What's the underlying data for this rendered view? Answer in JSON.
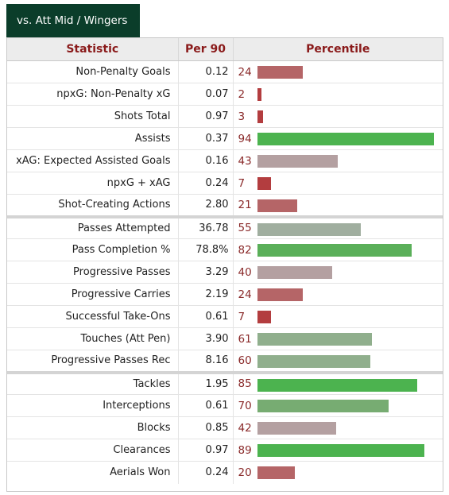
{
  "tab": {
    "label": "vs. Att Mid / Wingers"
  },
  "table": {
    "headers": {
      "statistic": "Statistic",
      "per90": "Per 90",
      "percentile": "Percentile"
    },
    "groups": [
      [
        {
          "stat": "Non-Penalty Goals",
          "per90": "0.12",
          "percentile": 24,
          "color": "#b56567"
        },
        {
          "stat": "npxG: Non-Penalty xG",
          "per90": "0.07",
          "percentile": 2,
          "color": "#b33d3f"
        },
        {
          "stat": "Shots Total",
          "per90": "0.97",
          "percentile": 3,
          "color": "#b33d3f"
        },
        {
          "stat": "Assists",
          "per90": "0.37",
          "percentile": 94,
          "color": "#4cb34f"
        },
        {
          "stat": "xAG: Expected Assisted Goals",
          "per90": "0.16",
          "percentile": 43,
          "color": "#b4a0a1"
        },
        {
          "stat": "npxG + xAG",
          "per90": "0.24",
          "percentile": 7,
          "color": "#b33d3f"
        },
        {
          "stat": "Shot-Creating Actions",
          "per90": "2.80",
          "percentile": 21,
          "color": "#b56567"
        }
      ],
      [
        {
          "stat": "Passes Attempted",
          "per90": "36.78",
          "percentile": 55,
          "color": "#a0ae9f"
        },
        {
          "stat": "Pass Completion %",
          "per90": "78.8%",
          "percentile": 82,
          "color": "#5aaf59"
        },
        {
          "stat": "Progressive Passes",
          "per90": "3.29",
          "percentile": 40,
          "color": "#b4a0a1"
        },
        {
          "stat": "Progressive Carries",
          "per90": "2.19",
          "percentile": 24,
          "color": "#b56567"
        },
        {
          "stat": "Successful Take-Ons",
          "per90": "0.61",
          "percentile": 7,
          "color": "#b33d3f"
        },
        {
          "stat": "Touches (Att Pen)",
          "per90": "3.90",
          "percentile": 61,
          "color": "#90af8d"
        },
        {
          "stat": "Progressive Passes Rec",
          "per90": "8.16",
          "percentile": 60,
          "color": "#90af8d"
        }
      ],
      [
        {
          "stat": "Tackles",
          "per90": "1.95",
          "percentile": 85,
          "color": "#4cb34f"
        },
        {
          "stat": "Interceptions",
          "per90": "0.61",
          "percentile": 70,
          "color": "#77ac72"
        },
        {
          "stat": "Blocks",
          "per90": "0.85",
          "percentile": 42,
          "color": "#b4a0a1"
        },
        {
          "stat": "Clearances",
          "per90": "0.97",
          "percentile": 89,
          "color": "#4cb34f"
        },
        {
          "stat": "Aerials Won",
          "per90": "0.24",
          "percentile": 20,
          "color": "#b56567"
        }
      ]
    ]
  }
}
